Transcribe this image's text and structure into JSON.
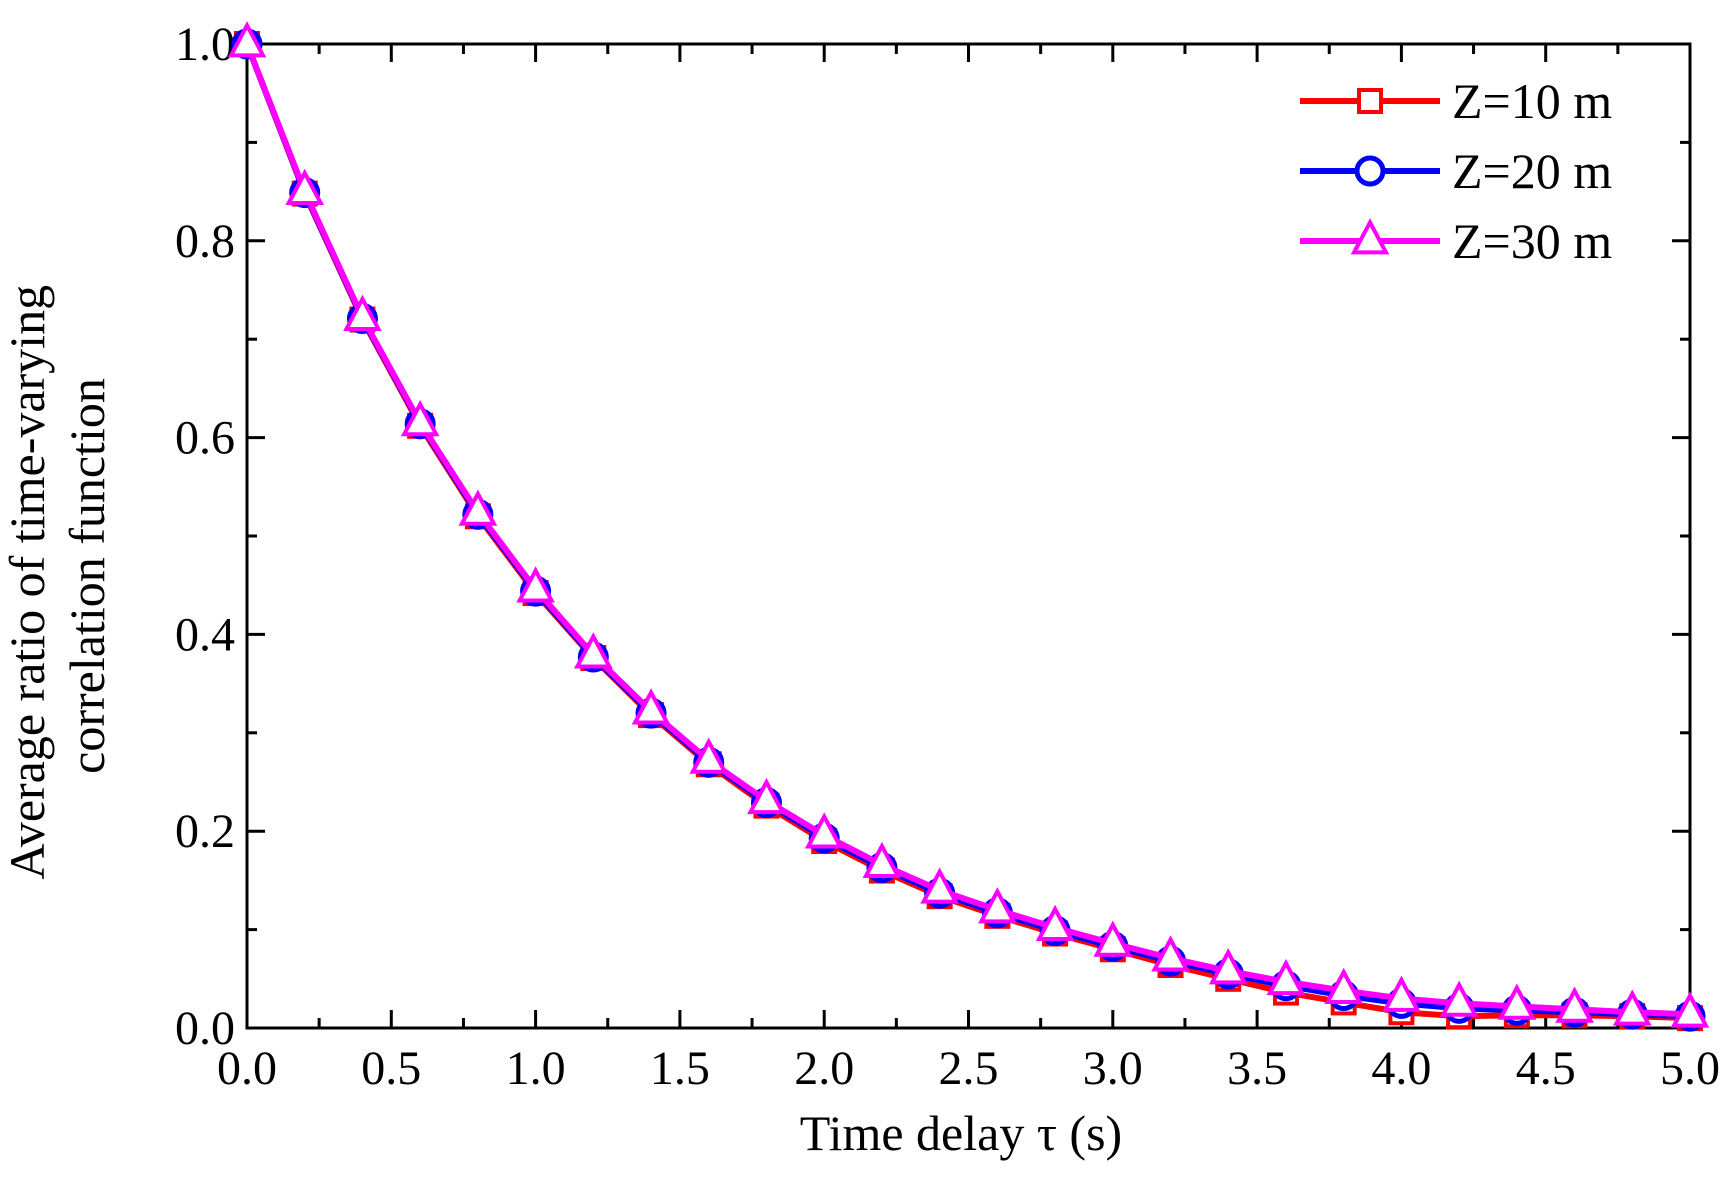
{
  "chart_data": {
    "type": "line",
    "title": "",
    "xlabel": "Time delay τ (s)",
    "ylabel_lines": [
      "Average ratio of time-varying",
      "correlation function"
    ],
    "xlim": [
      0.0,
      5.0
    ],
    "ylim": [
      0.0,
      1.0
    ],
    "grid": false,
    "legend_position": "top-right",
    "x_ticks": [
      "0.0",
      "0.5",
      "1.0",
      "1.5",
      "2.0",
      "2.5",
      "3.0",
      "3.5",
      "4.0",
      "4.5",
      "5.0"
    ],
    "y_ticks": [
      "0.0",
      "0.2",
      "0.4",
      "0.6",
      "0.8",
      "1.0"
    ],
    "x": [
      0.0,
      0.2,
      0.4,
      0.6,
      0.8,
      1.0,
      1.2,
      1.4,
      1.6,
      1.8,
      2.0,
      2.2,
      2.4,
      2.6,
      2.8,
      3.0,
      3.2,
      3.4,
      3.6,
      3.8,
      4.0,
      4.2,
      4.4,
      4.6,
      4.8,
      5.0
    ],
    "series": [
      {
        "name": "Z=10 m",
        "color": "#ff0000",
        "marker": "square",
        "values": [
          1.0,
          0.848,
          0.72,
          0.612,
          0.52,
          0.442,
          0.376,
          0.318,
          0.268,
          0.226,
          0.19,
          0.16,
          0.134,
          0.114,
          0.096,
          0.08,
          0.064,
          0.05,
          0.036,
          0.026,
          0.016,
          0.012,
          0.013,
          0.013,
          0.012,
          0.01
        ]
      },
      {
        "name": "Z=20 m",
        "color": "#0000ff",
        "marker": "circle",
        "values": [
          1.0,
          0.849,
          0.721,
          0.614,
          0.522,
          0.444,
          0.377,
          0.32,
          0.27,
          0.229,
          0.193,
          0.163,
          0.137,
          0.117,
          0.099,
          0.083,
          0.068,
          0.055,
          0.043,
          0.033,
          0.025,
          0.02,
          0.018,
          0.016,
          0.014,
          0.012
        ]
      },
      {
        "name": "Z=30 m",
        "color": "#ff00ff",
        "marker": "triangle",
        "values": [
          1.0,
          0.85,
          0.722,
          0.615,
          0.524,
          0.446,
          0.379,
          0.322,
          0.272,
          0.231,
          0.196,
          0.166,
          0.14,
          0.12,
          0.102,
          0.086,
          0.071,
          0.058,
          0.047,
          0.038,
          0.03,
          0.025,
          0.022,
          0.019,
          0.016,
          0.014
        ]
      }
    ]
  }
}
